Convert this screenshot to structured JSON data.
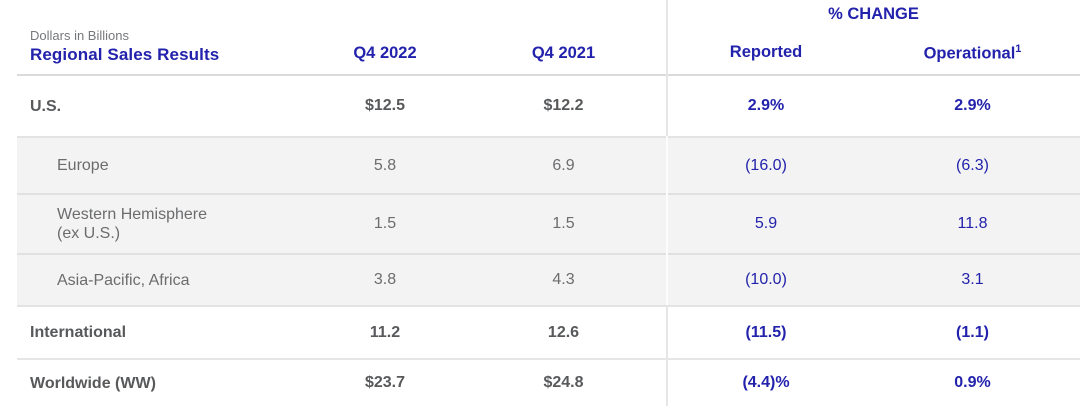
{
  "header": {
    "subtitle": "Dollars in Billions",
    "title": "Regional Sales Results",
    "col_q4_2022": "Q4 2022",
    "col_q4_2021": "Q4 2021",
    "pct_change_label": "% CHANGE",
    "col_reported": "Reported",
    "col_operational": "Operational",
    "operational_footnote_marker": "1"
  },
  "rows": [
    {
      "label": "U.S.",
      "label_line2": "",
      "q4_2022": "$12.5",
      "q4_2021": "$12.2",
      "reported": "2.9%",
      "operational": "2.9%"
    },
    {
      "label": "Europe",
      "label_line2": "",
      "q4_2022": "5.8",
      "q4_2021": "6.9",
      "reported": "(16.0)",
      "operational": "(6.3)"
    },
    {
      "label": "Western Hemisphere",
      "label_line2": "(ex U.S.)",
      "q4_2022": "1.5",
      "q4_2021": "1.5",
      "reported": "5.9",
      "operational": "11.8"
    },
    {
      "label": "Asia-Pacific, Africa",
      "label_line2": "",
      "q4_2022": "3.8",
      "q4_2021": "4.3",
      "reported": "(10.0)",
      "operational": "3.1"
    },
    {
      "label": "International",
      "label_line2": "",
      "q4_2022": "11.2",
      "q4_2021": "12.6",
      "reported": "(11.5)",
      "operational": "(1.1)"
    },
    {
      "label": "Worldwide (WW)",
      "label_line2": "",
      "q4_2022": "$23.7",
      "q4_2021": "$24.8",
      "reported": "(4.4)%",
      "operational": "0.9%"
    }
  ],
  "colors": {
    "accent_blue": "#2222AC",
    "text_dark_gray": "#58595B",
    "text_gray": "#6B6C6E",
    "subtitle_gray": "#77787B",
    "row_gray_bg": "#F3F3F3",
    "divider_gray": "#E6E6E6"
  }
}
